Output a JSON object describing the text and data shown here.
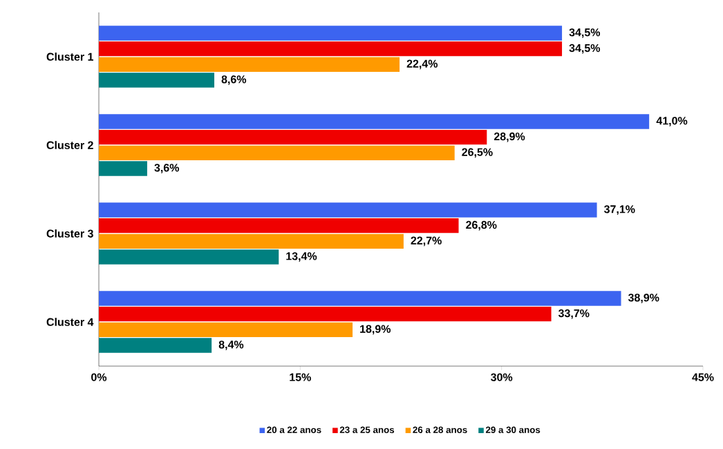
{
  "chart_data": {
    "type": "bar",
    "orientation": "horizontal",
    "categories": [
      "Cluster 1",
      "Cluster 2",
      "Cluster 3",
      "Cluster 4"
    ],
    "series": [
      {
        "name": "20 a 22 anos",
        "color": "#3c64f0",
        "values": [
          34.5,
          41.0,
          37.1,
          38.9
        ],
        "value_labels": [
          "34,5%",
          "41,0%",
          "37,1%",
          "38,9%"
        ]
      },
      {
        "name": "23 a 25 anos",
        "color": "#f00000",
        "values": [
          34.5,
          28.9,
          26.8,
          33.7
        ],
        "value_labels": [
          "34,5%",
          "28,9%",
          "26,8%",
          "33,7%"
        ]
      },
      {
        "name": "26 a 28 anos",
        "color": "#ff9a00",
        "values": [
          22.4,
          26.5,
          22.7,
          18.9
        ],
        "value_labels": [
          "22,4%",
          "26,5%",
          "22,7%",
          "18,9%"
        ]
      },
      {
        "name": "29 a 30 anos",
        "color": "#008080",
        "values": [
          8.6,
          3.6,
          13.4,
          8.4
        ],
        "value_labels": [
          "8,6%",
          "3,6%",
          "13,4%",
          "8,4%"
        ]
      }
    ],
    "xlim": [
      0,
      45
    ],
    "xticks": [
      {
        "value": 0,
        "label": "0%"
      },
      {
        "value": 15,
        "label": "15%"
      },
      {
        "value": 30,
        "label": "30%"
      },
      {
        "value": 45,
        "label": "45%"
      }
    ],
    "grid": false,
    "legend": "bottom"
  }
}
